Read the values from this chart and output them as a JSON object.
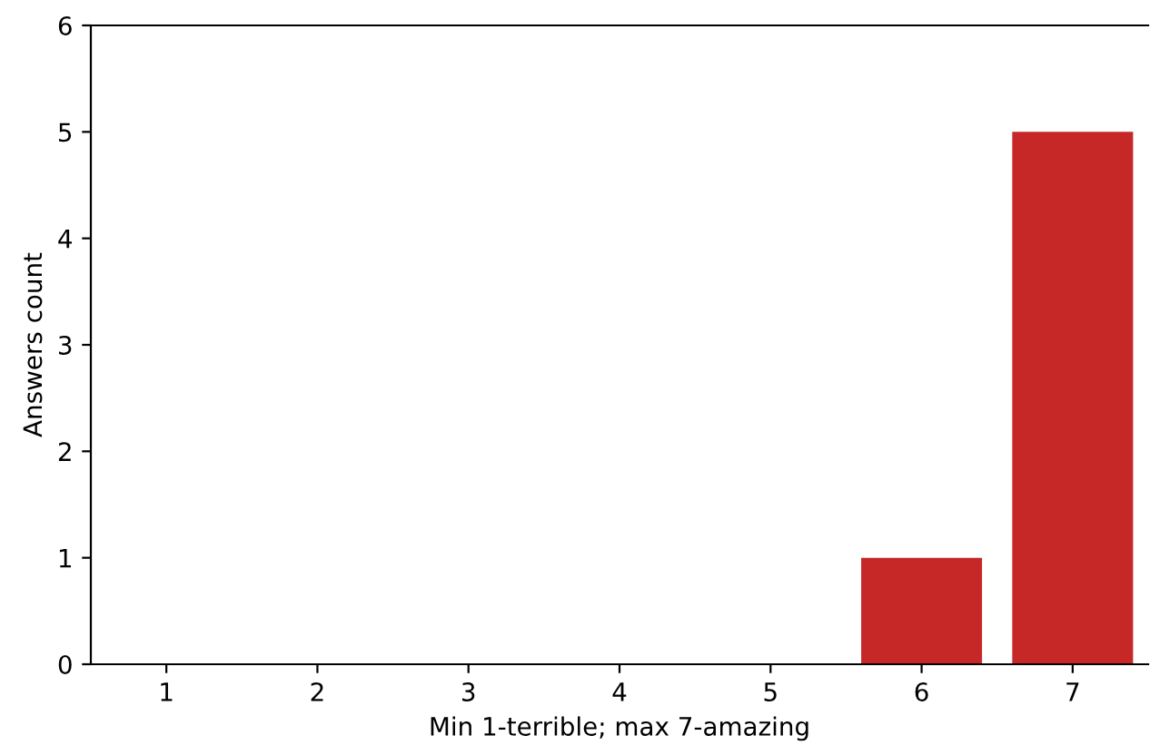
{
  "chart_data": {
    "type": "bar",
    "xlabel": "Min 1-terrible; max 7-amazing",
    "ylabel": "Answers count",
    "categories": [
      "1",
      "2",
      "3",
      "4",
      "5",
      "6",
      "7"
    ],
    "values": [
      0,
      0,
      0,
      0,
      0,
      1,
      5
    ],
    "color": "#c62828",
    "ylim": [
      0,
      6
    ],
    "yticks": [
      0,
      1,
      2,
      3,
      4,
      5,
      6
    ],
    "grid": false
  }
}
